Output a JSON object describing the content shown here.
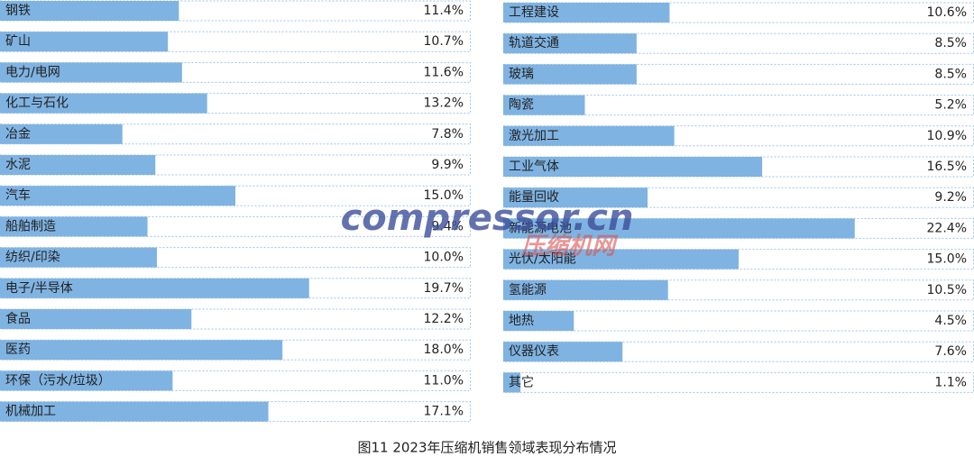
{
  "caption": "图11 2023年压缩机销售领域表现分布情况",
  "watermark": [
    "compressor.cn",
    "压缩机网"
  ],
  "chart_data": [
    {
      "type": "bar",
      "orientation": "horizontal",
      "color": "#7fb3e2",
      "xlim": [
        0,
        30
      ],
      "categories": [
        "钢铁",
        "矿山",
        "电力/电网",
        "化工与石化",
        "冶金",
        "水泥",
        "汽车",
        "船舶制造",
        "纺织/印染",
        "电子/半导体",
        "食品",
        "医药",
        "环保（污水/垃圾）",
        "机械加工"
      ],
      "values": [
        11.4,
        10.7,
        11.6,
        13.2,
        7.8,
        9.9,
        15.0,
        9.4,
        10.0,
        19.7,
        12.2,
        18.0,
        11.0,
        17.1
      ],
      "value_labels": [
        "11.4%",
        "10.7%",
        "11.6%",
        "13.2%",
        "7.8%",
        "9.9%",
        "15.0%",
        "9.4%",
        "10.0%",
        "19.7%",
        "12.2%",
        "18.0%",
        "11.0%",
        "17.1%"
      ]
    },
    {
      "type": "bar",
      "orientation": "horizontal",
      "color": "#7fb3e2",
      "xlim": [
        0,
        30
      ],
      "categories": [
        "工程建设",
        "轨道交通",
        "玻璃",
        "陶瓷",
        "激光加工",
        "工业气体",
        "能量回收",
        "新能源电池",
        "光伏/太阳能",
        "氢能源",
        "地热",
        "仪器仪表",
        "其它"
      ],
      "values": [
        10.6,
        8.5,
        8.5,
        5.2,
        10.9,
        16.5,
        9.2,
        22.4,
        15.0,
        10.5,
        4.5,
        7.6,
        1.1
      ],
      "value_labels": [
        "10.6%",
        "8.5%",
        "8.5%",
        "5.2%",
        "10.9%",
        "16.5%",
        "9.2%",
        "22.4%",
        "15.0%",
        "10.5%",
        "4.5%",
        "7.6%",
        "1.1%"
      ]
    }
  ]
}
